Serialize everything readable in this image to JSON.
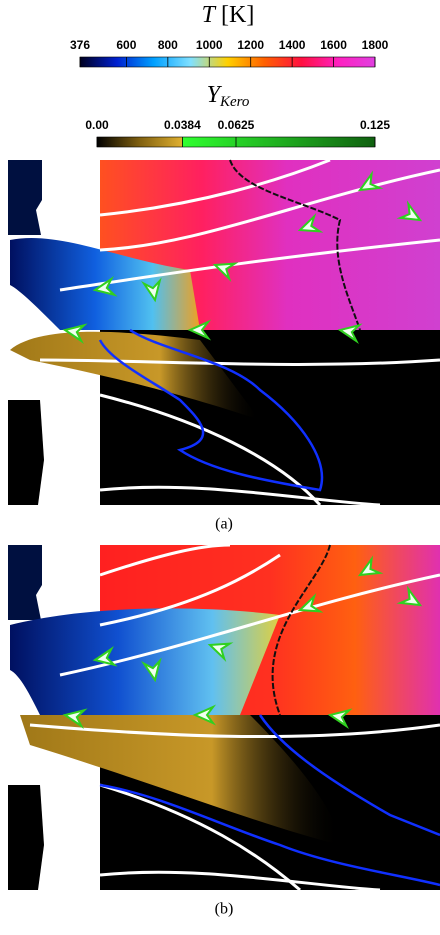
{
  "colorbars": [
    {
      "title": {
        "symbol": "T",
        "unit": "[K]"
      },
      "range": [
        376,
        1800
      ],
      "ticks": [
        376,
        600,
        800,
        1000,
        1200,
        1400,
        1600,
        1800
      ],
      "colors": [
        "#000020",
        "#0020d0",
        "#00a0ff",
        "#80e0ff",
        "#ffd000",
        "#ff6000",
        "#ff1040",
        "#ff20c0",
        "#e040e0"
      ]
    },
    {
      "title": {
        "symbol": "Y",
        "subscript": "Kero"
      },
      "range": [
        0,
        0.125
      ],
      "ticks": [
        {
          "value": 0,
          "label": "0.00"
        },
        0.0384,
        0.0625,
        0.125
      ],
      "colors": [
        "#000000",
        "#806010",
        "#e0b030",
        "#30ff30",
        "#106010"
      ]
    }
  ],
  "panels": [
    {
      "caption": "(a)"
    },
    {
      "caption": "(b)"
    }
  ]
}
